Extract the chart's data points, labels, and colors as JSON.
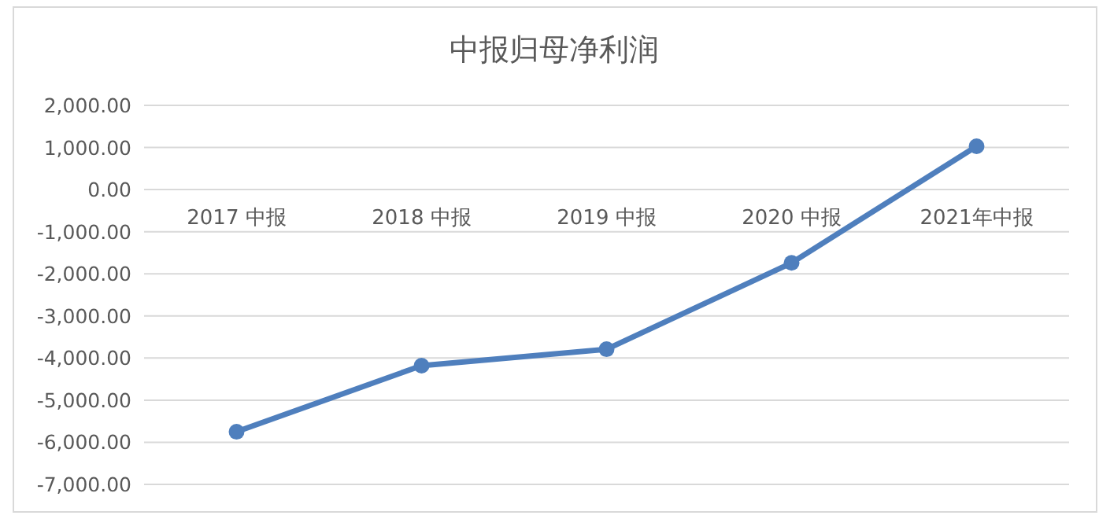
{
  "chart_data": {
    "type": "line",
    "title": "中报归母净利润",
    "categories": [
      "2017 中报",
      "2018 中报",
      "2019 中报",
      "2020 中报",
      "2021年中报"
    ],
    "series": [
      {
        "color": "#4f7fbd",
        "values": [
          -5750,
          -4180,
          -3790,
          -1740,
          1030
        ]
      }
    ],
    "ylim": [
      -7000,
      2000
    ],
    "yticks": [
      {
        "value": 2000,
        "label": "2,000.00"
      },
      {
        "value": 1000,
        "label": "1,000.00"
      },
      {
        "value": 0,
        "label": "0.00"
      },
      {
        "value": -1000,
        "label": "-1,000.00"
      },
      {
        "value": -2000,
        "label": "-2,000.00"
      },
      {
        "value": -3000,
        "label": "-3,000.00"
      },
      {
        "value": -4000,
        "label": "-4,000.00"
      },
      {
        "value": -5000,
        "label": "-5,000.00"
      },
      {
        "value": -6000,
        "label": "-6,000.00"
      },
      {
        "value": -7000,
        "label": "-7,000.00"
      }
    ],
    "grid": "y",
    "marker": "circle",
    "line_style": "solid"
  }
}
